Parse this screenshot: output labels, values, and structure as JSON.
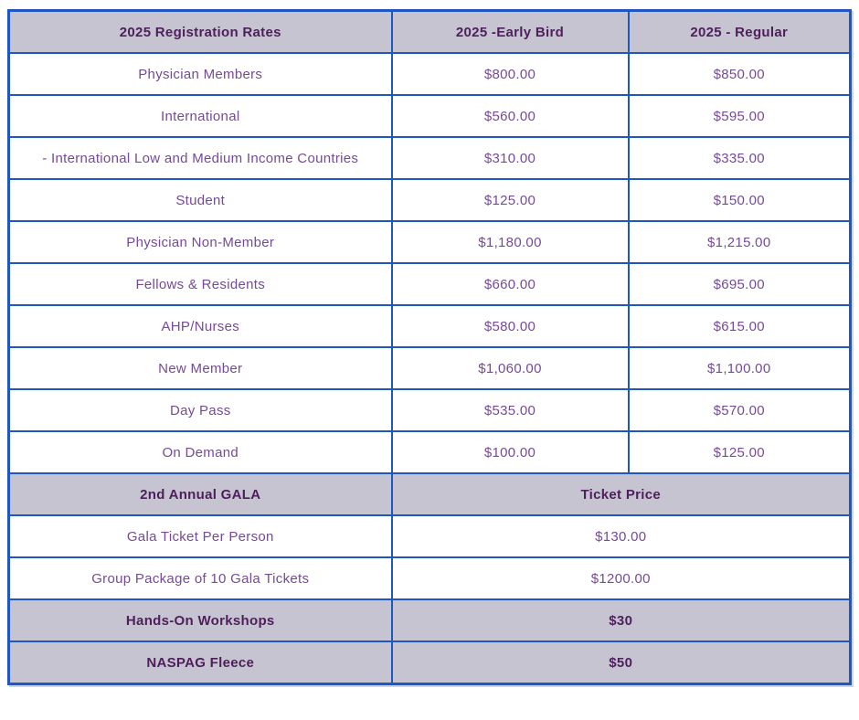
{
  "colors": {
    "border_blue": "#1e56c2",
    "header_background": "#c6c4d0",
    "header_text": "#4f1e5c",
    "body_text": "#764a97"
  },
  "registration": {
    "headers": {
      "category": "2025 Registration Rates",
      "early_bird": "2025 -Early Bird",
      "regular": "2025 - Regular"
    },
    "rows": [
      {
        "label": "Physician Members",
        "early": "$800.00",
        "regular": "$850.00"
      },
      {
        "label": "International",
        "early": "$560.00",
        "regular": "$595.00"
      },
      {
        "label": "- International Low and Medium Income Countries",
        "early": "$310.00",
        "regular": "$335.00"
      },
      {
        "label": "Student",
        "early": "$125.00",
        "regular": "$150.00"
      },
      {
        "label": "Physician Non-Member",
        "early": "$1,180.00",
        "regular": "$1,215.00"
      },
      {
        "label": "Fellows & Residents",
        "early": "$660.00",
        "regular": "$695.00"
      },
      {
        "label": "AHP/Nurses",
        "early": "$580.00",
        "regular": "$615.00"
      },
      {
        "label": "New Member",
        "early": "$1,060.00",
        "regular": "$1,100.00"
      },
      {
        "label": "Day Pass",
        "early": "$535.00",
        "regular": "$570.00"
      },
      {
        "label": "On Demand",
        "early": "$100.00",
        "regular": "$125.00"
      }
    ]
  },
  "gala": {
    "header_label": "2nd Annual GALA",
    "header_price": "Ticket Price",
    "rows": [
      {
        "label": "Gala Ticket Per Person",
        "price": "$130.00"
      },
      {
        "label": "Group Package of 10 Gala Tickets",
        "price": "$1200.00"
      }
    ]
  },
  "extras": [
    {
      "label": "Hands-On Workshops",
      "price": "$30"
    },
    {
      "label": "NASPAG Fleece",
      "price": "$50"
    }
  ]
}
